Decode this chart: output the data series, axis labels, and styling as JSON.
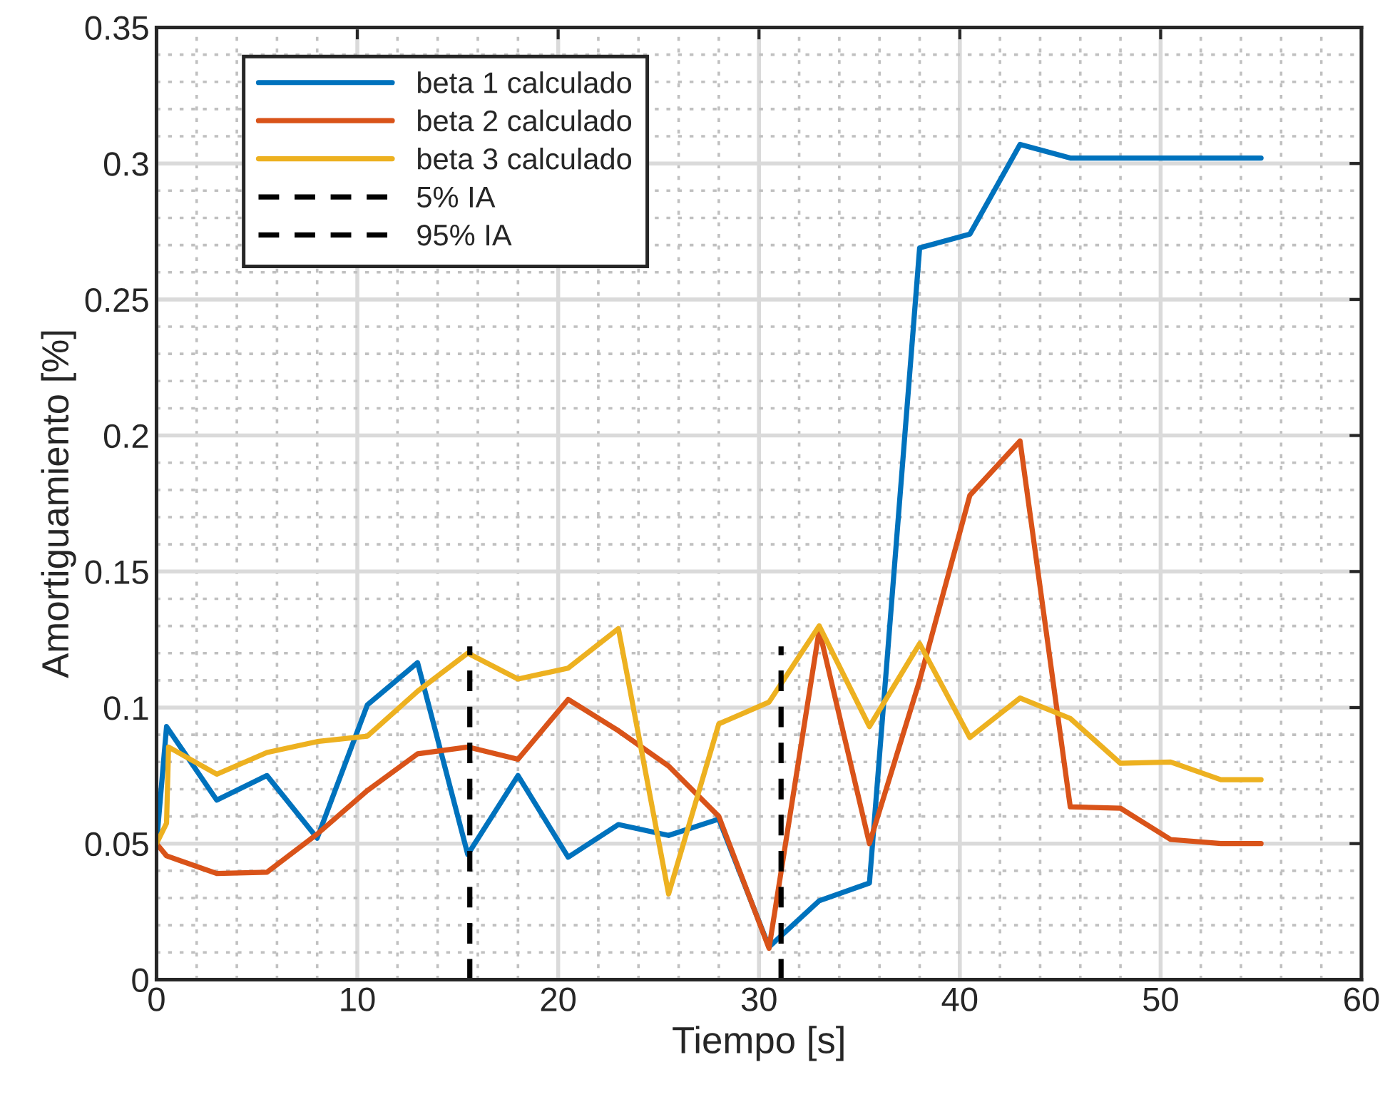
{
  "chart_data": {
    "type": "line",
    "xlabel": "Tiempo [s]",
    "ylabel": "Amortiguamiento [%]",
    "xlim": [
      0,
      60
    ],
    "ylim": [
      0,
      0.35
    ],
    "xticks": [
      0,
      10,
      20,
      30,
      40,
      50,
      60
    ],
    "yticks": [
      0,
      0.05,
      0.1,
      0.15,
      0.2,
      0.25,
      0.3,
      0.35
    ],
    "grid": true,
    "legend": "top left",
    "line_style": "solid",
    "marker": "none",
    "series": [
      {
        "name": "beta 1 calculado",
        "color": "#0072bd",
        "x": [
          0,
          0.5,
          3,
          5.5,
          8,
          10.5,
          13,
          15.5,
          18,
          20.5,
          23,
          25.5,
          28,
          30.5,
          33,
          35.5,
          38,
          40.5,
          43,
          45.5,
          48,
          50.5,
          53,
          55
        ],
        "values": [
          0.05,
          0.093,
          0.066,
          0.075,
          0.052,
          0.101,
          0.1165,
          0.046,
          0.075,
          0.045,
          0.057,
          0.053,
          0.059,
          0.012,
          0.029,
          0.0355,
          0.269,
          0.274,
          0.307,
          0.302,
          0.302,
          0.302,
          0.302,
          0.302
        ]
      },
      {
        "name": "beta 2 calculado",
        "color": "#d95319",
        "x": [
          0,
          0.5,
          3,
          5.5,
          8,
          10.5,
          13,
          15.5,
          18,
          20.5,
          23,
          25.5,
          28,
          30.5,
          33,
          35.5,
          38,
          40.5,
          43,
          45.5,
          48,
          50.5,
          53,
          55
        ],
        "values": [
          0.05,
          0.0455,
          0.039,
          0.0395,
          0.0535,
          0.0695,
          0.083,
          0.0855,
          0.081,
          0.103,
          0.0915,
          0.0785,
          0.06,
          0.0115,
          0.1285,
          0.05,
          0.11,
          0.178,
          0.198,
          0.0635,
          0.063,
          0.0515,
          0.05,
          0.05
        ]
      },
      {
        "name": "beta 3 calculado",
        "color": "#edb120",
        "x": [
          0,
          0.5,
          0.6,
          3,
          5.5,
          8,
          10.5,
          13,
          15.5,
          18,
          20.5,
          23,
          25.5,
          28,
          30.5,
          33,
          35.5,
          38,
          40.5,
          43,
          45.5,
          48,
          50.5,
          53,
          55
        ],
        "values": [
          0.05,
          0.0575,
          0.0855,
          0.0755,
          0.0835,
          0.0875,
          0.0895,
          0.106,
          0.12,
          0.1105,
          0.1145,
          0.129,
          0.0315,
          0.094,
          0.102,
          0.13,
          0.093,
          0.1235,
          0.089,
          0.1035,
          0.096,
          0.0795,
          0.08,
          0.0735,
          0.0735
        ]
      },
      {
        "name": "5% IA",
        "color": "#000000",
        "line_style": "dashed",
        "x": [
          15.6,
          15.6
        ],
        "values": [
          0,
          0.1225
        ]
      },
      {
        "name": "95% IA",
        "color": "#000000",
        "line_style": "dashed",
        "x": [
          31.1,
          31.1
        ],
        "values": [
          0,
          0.1225
        ]
      }
    ]
  }
}
